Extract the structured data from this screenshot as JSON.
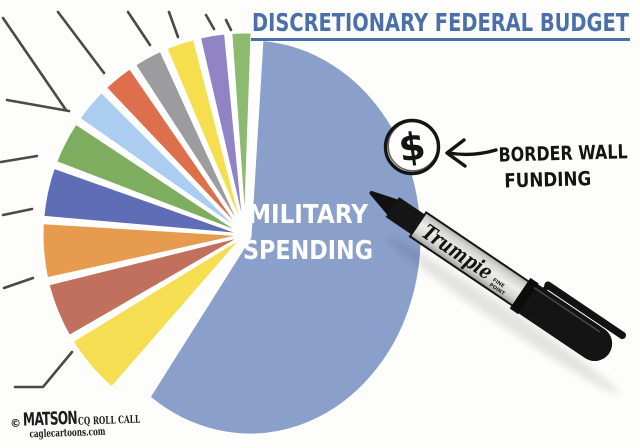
{
  "background_color": "#fdfdfc",
  "title": {
    "text": "DISCRETIONARY FEDERAL BUDGET",
    "color": "#4b70a9"
  },
  "pie": {
    "main_slice_label_line1": "MILITARY",
    "main_slice_label_line2": "SPENDING",
    "main_slice_label_color": "#ffffff"
  },
  "annotation": {
    "symbol": "$",
    "line1": "BORDER WALL",
    "line2": "FUNDING",
    "color": "#141414"
  },
  "marker": {
    "brand_text": "Trumpie",
    "sub_text_line1": "FINE",
    "sub_text_line2": "POINT",
    "barrel_color": "#dcdcd8",
    "cap_color": "#141414"
  },
  "signature": {
    "copyright": "©",
    "artist": "MATSON",
    "publication": "CQ ROLL CALL",
    "website": "caglecartoons.com"
  },
  "chart_data": {
    "type": "pie",
    "title": "DISCRETIONARY FEDERAL BUDGET",
    "legend_position": "none",
    "note": "Editorial cartoon pie chart. Only the dominant slice is labeled (MILITARY SPENDING). Leader lines from the small slices point to labels outside the image. A hand-drawn circled $ outside the pie is labeled BORDER WALL FUNDING, implying a negligible share.",
    "segments": [
      {
        "name": "military-spending",
        "label": "MILITARY SPENDING",
        "color": "#8a9fca",
        "start_deg": -126,
        "end_deg": 86,
        "approx_share_pct": 58.9
      },
      {
        "name": "slice-green-small",
        "label": "",
        "color": "#8cbb70",
        "start_deg": 88,
        "end_deg": 94,
        "approx_share_pct": 1.7
      },
      {
        "name": "slice-purple",
        "label": "",
        "color": "#9184c4",
        "start_deg": 95.5,
        "end_deg": 103,
        "approx_share_pct": 2.1
      },
      {
        "name": "slice-yellow-small",
        "label": "",
        "color": "#f5df4e",
        "start_deg": 104.5,
        "end_deg": 113,
        "approx_share_pct": 2.4
      },
      {
        "name": "slice-gray",
        "label": "",
        "color": "#9c9c9e",
        "start_deg": 114.5,
        "end_deg": 123,
        "approx_share_pct": 2.4
      },
      {
        "name": "slice-red-orange",
        "label": "",
        "color": "#dd6f4c",
        "start_deg": 124.5,
        "end_deg": 133.5,
        "approx_share_pct": 2.5
      },
      {
        "name": "slice-light-blue",
        "label": "",
        "color": "#abcdf0",
        "start_deg": 135,
        "end_deg": 145,
        "approx_share_pct": 2.8
      },
      {
        "name": "slice-green-large",
        "label": "",
        "color": "#7fad60",
        "start_deg": 146.5,
        "end_deg": 159,
        "approx_share_pct": 3.5
      },
      {
        "name": "slice-indigo",
        "label": "",
        "color": "#5f6db6",
        "start_deg": 160.5,
        "end_deg": 175,
        "approx_share_pct": 4.0
      },
      {
        "name": "slice-orange",
        "label": "",
        "color": "#e69b4e",
        "start_deg": 176.5,
        "end_deg": 192.5,
        "approx_share_pct": 4.4
      },
      {
        "name": "slice-brick",
        "label": "",
        "color": "#c2705e",
        "start_deg": 194,
        "end_deg": 210,
        "approx_share_pct": 4.4
      },
      {
        "name": "slice-yellow-large",
        "label": "",
        "color": "#f6de52",
        "start_deg": 211.5,
        "end_deg": 229,
        "approx_share_pct": 4.9
      }
    ],
    "annotations": [
      {
        "text": "BORDER WALL FUNDING",
        "representation": "hand-drawn circled $ outside the pie",
        "approx_share_pct": 0
      }
    ]
  }
}
